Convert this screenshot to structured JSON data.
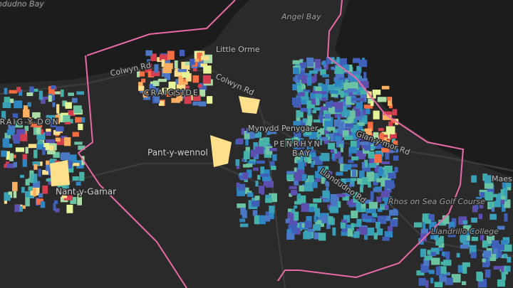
{
  "map": {
    "places": [
      {
        "label": "Llandudno Bay"
      },
      {
        "label": "Angel Bay"
      },
      {
        "label": "Little Orme"
      },
      {
        "label": "CRAIGSIDE"
      },
      {
        "label": "Pant-y-wennol"
      },
      {
        "label": "Mynydd Penygaer"
      },
      {
        "label": "PENRHYN"
      },
      {
        "label": "BAY"
      },
      {
        "label": "Nant-y-Gamar"
      },
      {
        "label": "CRAIG-Y-DON"
      },
      {
        "label": "Rhos on Sea Golf Course"
      },
      {
        "label": "Llandrillo College"
      },
      {
        "label": "Maes"
      }
    ],
    "roads": [
      {
        "label": "Colwyn Rd"
      },
      {
        "label": "Colwyn Rd"
      },
      {
        "label": "Llandudno Rd"
      },
      {
        "label": "Glan-y-mor Rd"
      }
    ]
  }
}
